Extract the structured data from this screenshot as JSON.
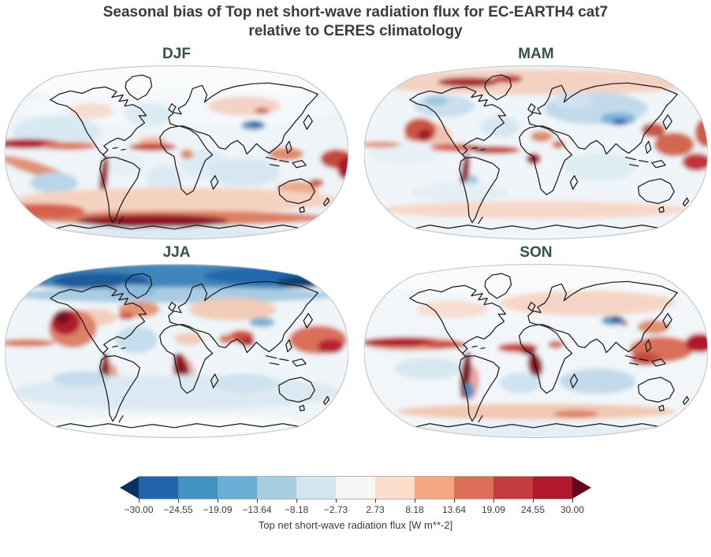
{
  "figure": {
    "title_line1": "Seasonal bias of Top net short-wave radiation flux for EC-EARTH4 cat7",
    "title_line2": "relative to CERES climatology"
  },
  "panels": [
    {
      "label": "DJF"
    },
    {
      "label": "MAM"
    },
    {
      "label": "JJA"
    },
    {
      "label": "SON"
    }
  ],
  "colorbar": {
    "label": "Top net short-wave radiation flux [W m**-2]",
    "ticks": [
      "−30.00",
      "−24.55",
      "−19.09",
      "−13.64",
      "−8.18",
      "−2.73",
      "2.73",
      "8.18",
      "13.64",
      "19.09",
      "24.55",
      "30.00"
    ],
    "segment_colors": [
      "#2166ac",
      "#4292c3",
      "#6aaed4",
      "#a6cee3",
      "#d3e6f0",
      "#f6f6f5",
      "#fcdecd",
      "#f4a582",
      "#dd6f58",
      "#c43c3d",
      "#b2182b"
    ],
    "under_color": "#0a3161",
    "over_color": "#67001f"
  },
  "colors": {
    "figure_title": "#3b3b3b",
    "panel_title": "#35514d",
    "coastline": "#161616",
    "map_rim": "#c9c9c9"
  },
  "chart_data": {
    "type": "heatmap",
    "subtype": "2x2 seasonal global bias maps, filled contours on Robinson projection with coastlines",
    "title": "Seasonal bias of Top net short-wave radiation flux for EC-EARTH4 cat7 relative to CERES climatology",
    "panels": [
      "DJF",
      "MAM",
      "JJA",
      "SON"
    ],
    "variable": "Top net short-wave radiation flux bias",
    "model": "EC-EARTH4 cat7",
    "reference": "CERES climatology",
    "units": "W m**-2",
    "colorbar_label": "Top net short-wave radiation flux [W m**-2]",
    "levels": [
      -30.0,
      -24.55,
      -19.09,
      -13.64,
      -8.18,
      -2.73,
      2.73,
      8.18,
      13.64,
      19.09,
      24.55,
      30.0
    ],
    "value_range": [
      -30.0,
      30.0
    ],
    "colormap": "RdBu_r discrete (blue = negative bias, red = positive bias)",
    "extend": "both",
    "panel_features": {
      "DJF": "Red ITCZ bands across the tropical Pacific and Atlantic; dark-red belt over the Southern Ocean near 60S; dark-red coastal stripe off Peru/Chile; blue spot over the Tibetan Plateau; near-white (no bias) over polar-night northern high latitudes; reddish bias over Australia and the west Pacific.",
      "MAM": "Blue bias over snow-covered Eurasia and North America with dark-blue patches over Central Asia; dark-red bias along Arctic Canada; red blob in the NE Pacific; red tropical Atlantic ITCZ; dark-red coastal bias off Peru and in the Gulf of Guinea; red East Asian coast and west Pacific; pale pink Southern Ocean.",
      "JJA": "Strong dark-blue bias across the whole Arctic; large dark-red stratocumulus-region biases off California, Peru and Namibia; red North Atlantic and NW Pacific; red Indian monsoon region; light-blue southern oceans; near-white polar-night Antarctica.",
      "SON": "Red ITCZ band across the Pacific and Atlantic; strong dark-red coastal biases off Peru and Angola; red western Pacific warm pool and maritime continent; dark-blue spot over the Tibetan Plateau; light-blue southern mid-latitude oceans with a pinkish band near 60S."
    }
  }
}
